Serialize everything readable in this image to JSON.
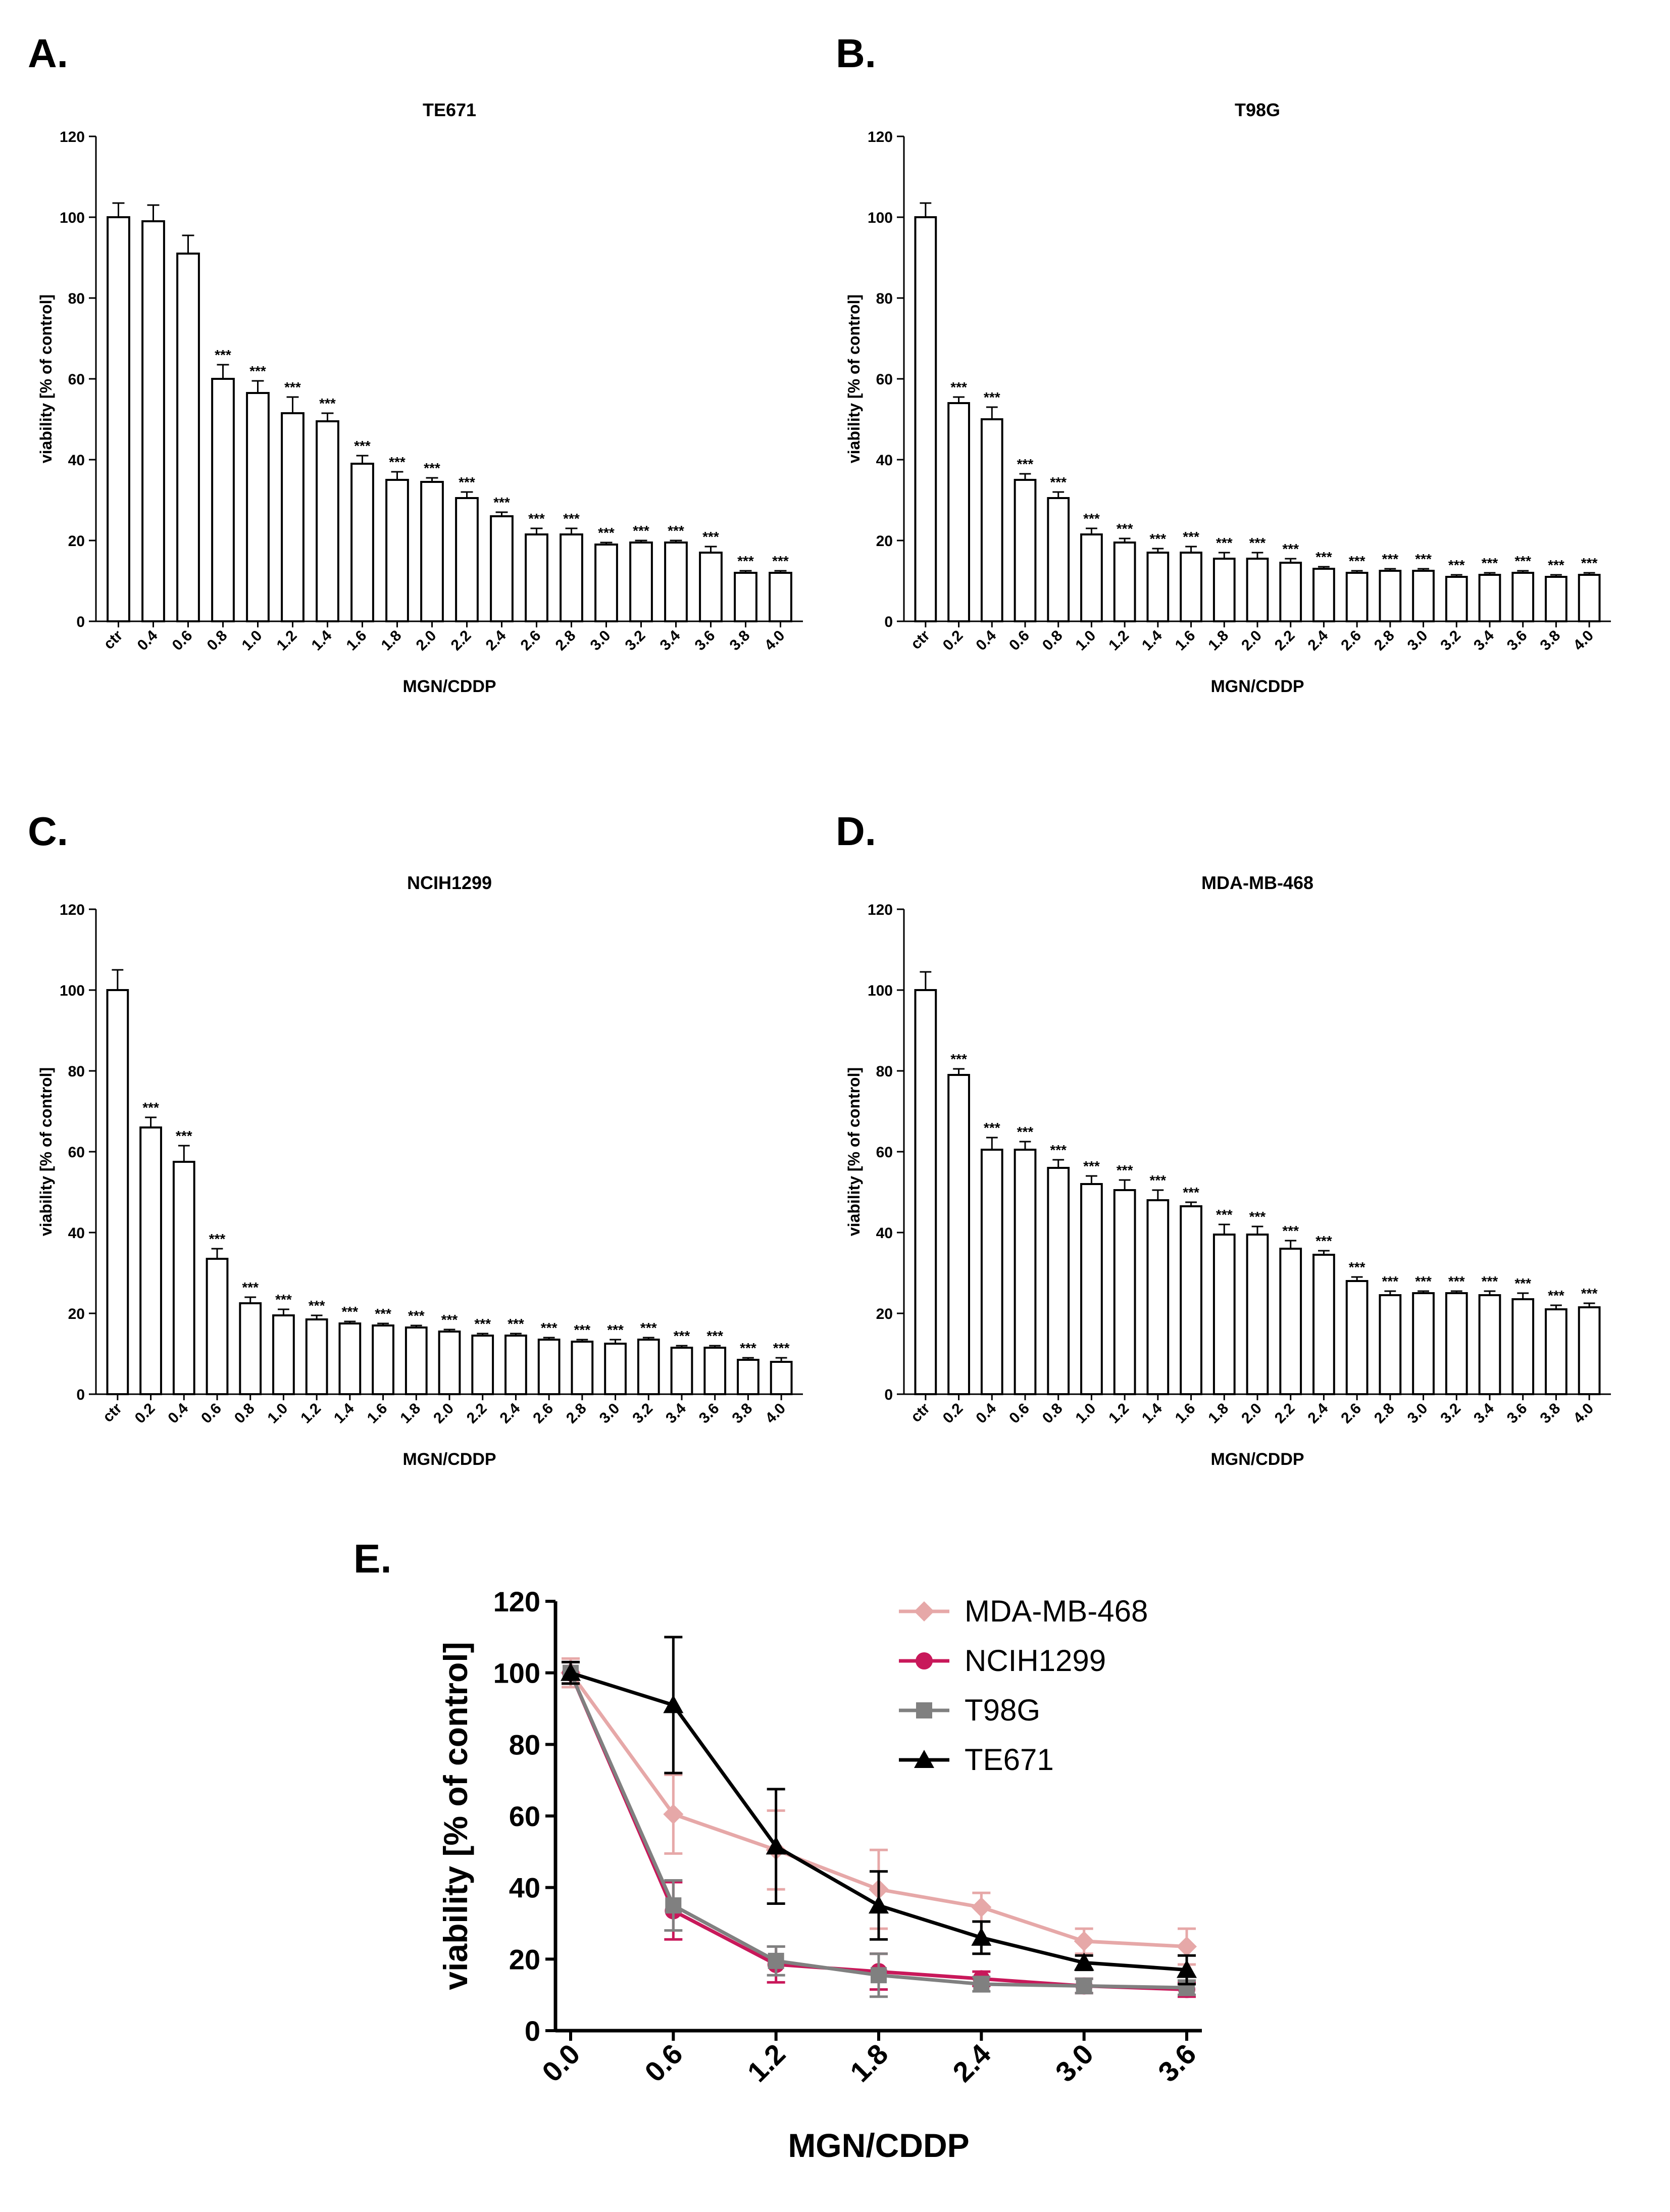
{
  "panels": [
    {
      "letter": "A."
    },
    {
      "letter": "B."
    },
    {
      "letter": "C."
    },
    {
      "letter": "D."
    },
    {
      "letter": "E."
    }
  ],
  "chart_data": [
    {
      "type": "bar",
      "title": "TE671",
      "xlabel": "MGN/CDDP",
      "ylabel": "viability [% of control]",
      "ylim": [
        0,
        120
      ],
      "yticks": [
        0,
        20,
        40,
        60,
        80,
        100,
        120
      ],
      "categories": [
        "ctr",
        "0.4",
        "0.6",
        "0.8",
        "1.0",
        "1.2",
        "1.4",
        "1.6",
        "1.8",
        "2.0",
        "2.2",
        "2.4",
        "2.6",
        "2.8",
        "3.0",
        "3.2",
        "3.4",
        "3.6",
        "3.8",
        "4.0"
      ],
      "values": [
        100,
        99,
        91,
        60,
        56.5,
        51.5,
        49.5,
        39,
        35,
        34.5,
        30.5,
        26,
        21.5,
        21.5,
        19,
        19.5,
        19.5,
        17,
        12,
        12
      ],
      "errors": [
        3.5,
        4,
        4.5,
        3.5,
        3,
        4,
        2,
        2,
        2,
        1,
        1.5,
        1,
        1.5,
        1.5,
        0.5,
        0.5,
        0.5,
        1.5,
        0.5,
        0.5
      ],
      "significance": [
        "",
        "",
        "",
        "***",
        "***",
        "***",
        "***",
        "***",
        "***",
        "***",
        "***",
        "***",
        "***",
        "***",
        "***",
        "***",
        "***",
        "***",
        "***",
        "***"
      ]
    },
    {
      "type": "bar",
      "title": "T98G",
      "xlabel": "MGN/CDDP",
      "ylabel": "viability [% of control]",
      "ylim": [
        0,
        120
      ],
      "yticks": [
        0,
        20,
        40,
        60,
        80,
        100,
        120
      ],
      "categories": [
        "ctr",
        "0.2",
        "0.4",
        "0.6",
        "0.8",
        "1.0",
        "1.2",
        "1.4",
        "1.6",
        "1.8",
        "2.0",
        "2.2",
        "2.4",
        "2.6",
        "2.8",
        "3.0",
        "3.2",
        "3.4",
        "3.6",
        "3.8",
        "4.0"
      ],
      "values": [
        100,
        54,
        50,
        35,
        30.5,
        21.5,
        19.5,
        17,
        17,
        15.5,
        15.5,
        14.5,
        13,
        12,
        12.5,
        12.5,
        11,
        11.5,
        12,
        11,
        11.5
      ],
      "errors": [
        3.5,
        1.5,
        3,
        1.5,
        1.5,
        1.5,
        1,
        1,
        1.5,
        1.5,
        1.5,
        1,
        0.5,
        0.5,
        0.5,
        0.5,
        0.5,
        0.5,
        0.5,
        0.5,
        0.5
      ],
      "significance": [
        "",
        "***",
        "***",
        "***",
        "***",
        "***",
        "***",
        "***",
        "***",
        "***",
        "***",
        "***",
        "***",
        "***",
        "***",
        "***",
        "***",
        "***",
        "***",
        "***",
        "***"
      ]
    },
    {
      "type": "bar",
      "title": "NCIH1299",
      "xlabel": "MGN/CDDP",
      "ylabel": "viability [% of control]",
      "ylim": [
        0,
        120
      ],
      "yticks": [
        0,
        20,
        40,
        60,
        80,
        100,
        120
      ],
      "categories": [
        "ctr",
        "0.2",
        "0.4",
        "0.6",
        "0.8",
        "1.0",
        "1.2",
        "1.4",
        "1.6",
        "1.8",
        "2.0",
        "2.2",
        "2.4",
        "2.6",
        "2.8",
        "3.0",
        "3.2",
        "3.4",
        "3.6",
        "3.8",
        "4.0"
      ],
      "values": [
        100,
        66,
        57.5,
        33.5,
        22.5,
        19.5,
        18.5,
        17.5,
        17,
        16.5,
        15.5,
        14.5,
        14.5,
        13.5,
        13,
        12.5,
        13.5,
        11.5,
        11.5,
        8.5,
        8
      ],
      "errors": [
        5,
        2.5,
        4,
        2.5,
        1.5,
        1.5,
        1,
        0.5,
        0.5,
        0.5,
        0.5,
        0.5,
        0.5,
        0.5,
        0.5,
        1,
        0.5,
        0.5,
        0.5,
        0.5,
        1
      ],
      "significance": [
        "",
        "***",
        "***",
        "***",
        "***",
        "***",
        "***",
        "***",
        "***",
        "***",
        "***",
        "***",
        "***",
        "***",
        "***",
        "***",
        "***",
        "***",
        "***",
        "***",
        "***"
      ]
    },
    {
      "type": "bar",
      "title": "MDA-MB-468",
      "xlabel": "MGN/CDDP",
      "ylabel": "viability [% of control]",
      "ylim": [
        0,
        120
      ],
      "yticks": [
        0,
        20,
        40,
        60,
        80,
        100,
        120
      ],
      "categories": [
        "ctr",
        "0.2",
        "0.4",
        "0.6",
        "0.8",
        "1.0",
        "1.2",
        "1.4",
        "1.6",
        "1.8",
        "2.0",
        "2.2",
        "2.4",
        "2.6",
        "2.8",
        "3.0",
        "3.2",
        "3.4",
        "3.6",
        "3.8",
        "4.0"
      ],
      "values": [
        100,
        79,
        60.5,
        60.5,
        56,
        52,
        50.5,
        48,
        46.5,
        39.5,
        39.5,
        36,
        34.5,
        28,
        24.5,
        25,
        25,
        24.5,
        23.5,
        21,
        21.5
      ],
      "errors": [
        4.5,
        1.5,
        3,
        2,
        2,
        2,
        2.5,
        2.5,
        1,
        2.5,
        2,
        2,
        1,
        1,
        1,
        0.5,
        0.5,
        1,
        1.5,
        1,
        1
      ],
      "significance": [
        "",
        "***",
        "***",
        "***",
        "***",
        "***",
        "***",
        "***",
        "***",
        "***",
        "***",
        "***",
        "***",
        "***",
        "***",
        "***",
        "***",
        "***",
        "***",
        "***",
        "***"
      ]
    },
    {
      "type": "line",
      "title": "",
      "xlabel": "MGN/CDDP",
      "ylabel": "viability [% of control]",
      "ylim": [
        0,
        120
      ],
      "yticks": [
        0,
        20,
        40,
        60,
        80,
        100,
        120
      ],
      "x": [
        0.0,
        0.6,
        1.2,
        1.8,
        2.4,
        3.0,
        3.6
      ],
      "xtick_labels": [
        "0.0",
        "0.6",
        "1.2",
        "1.8",
        "2.4",
        "3.0",
        "3.6"
      ],
      "legend_position": "top-right",
      "series": [
        {
          "name": "MDA-MB-468",
          "color": "#e6a8a8",
          "marker": "diamond",
          "values": [
            100,
            60.5,
            50.5,
            39.5,
            34.5,
            25,
            23.5
          ],
          "errors": [
            4,
            11,
            11,
            11,
            4,
            3.5,
            5
          ]
        },
        {
          "name": "NCIH1299",
          "color": "#c8185a",
          "marker": "circle",
          "values": [
            100,
            33.5,
            18.5,
            16.5,
            14.5,
            12.5,
            11.5
          ],
          "errors": [
            3,
            8,
            5,
            5,
            2,
            2,
            2
          ]
        },
        {
          "name": "T98G",
          "color": "#808080",
          "marker": "square",
          "values": [
            100,
            35,
            19.5,
            15.5,
            13,
            12.5,
            12
          ],
          "errors": [
            3,
            7,
            4,
            6,
            2,
            2,
            2
          ]
        },
        {
          "name": "TE671",
          "color": "#000000",
          "marker": "triangle",
          "values": [
            100,
            91,
            51.5,
            35,
            26,
            19,
            17
          ],
          "errors": [
            3,
            19,
            16,
            9.5,
            4.5,
            2,
            4
          ]
        }
      ]
    }
  ]
}
